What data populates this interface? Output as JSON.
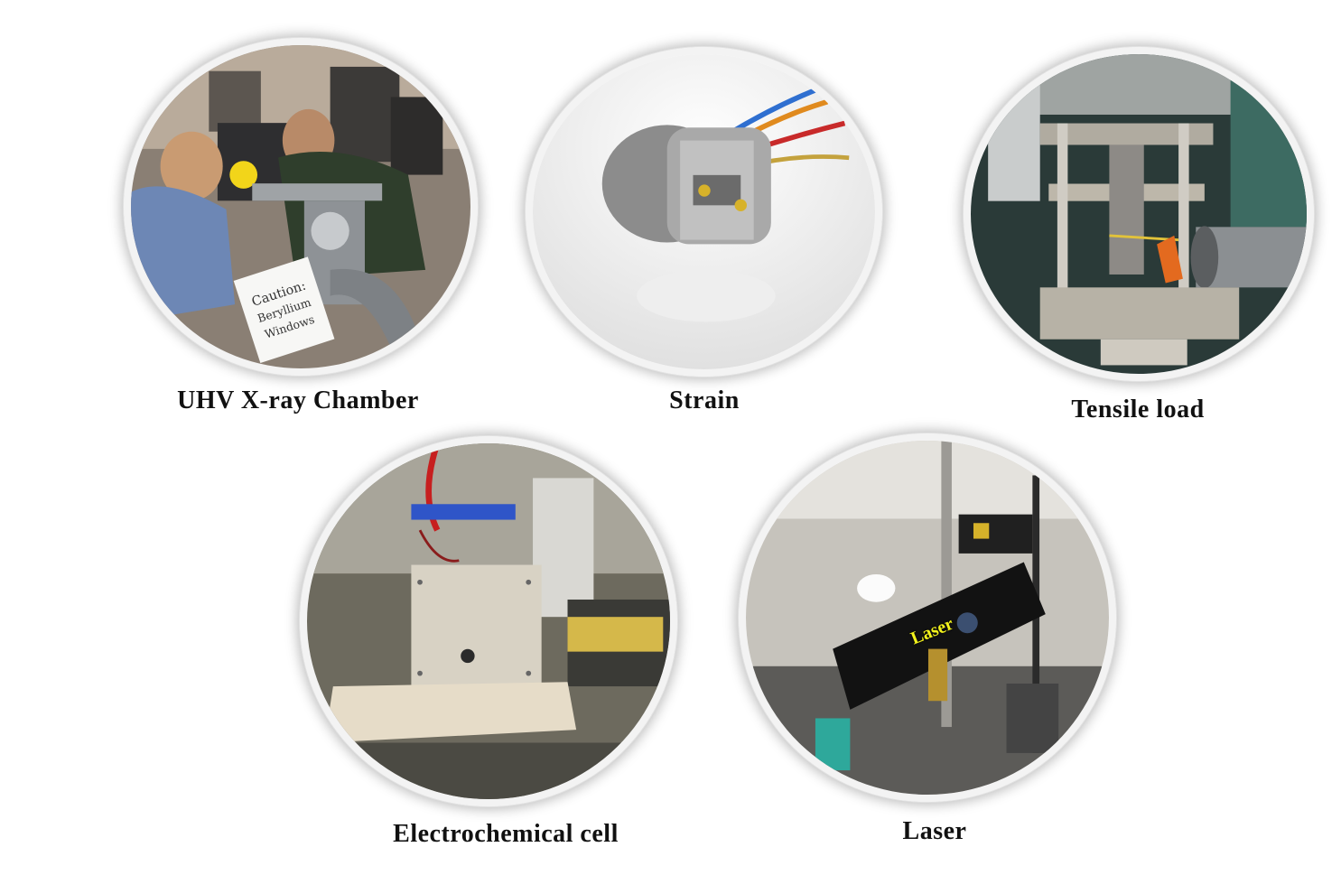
{
  "panels": [
    {
      "id": "uhv",
      "caption": "UHV X-ray Chamber",
      "sign_text": "Caution: Beryllium Windows"
    },
    {
      "id": "strain",
      "caption": "Strain"
    },
    {
      "id": "tensile",
      "caption": "Tensile load"
    },
    {
      "id": "electrochem",
      "caption": "Electrochemical cell"
    },
    {
      "id": "laser",
      "caption": "Laser",
      "overlay_label": "Laser"
    }
  ],
  "colors": {
    "background": "#ffffff",
    "caption": "#111111",
    "laser_label": "#f3f31c",
    "ring": "#f3f3f3"
  }
}
